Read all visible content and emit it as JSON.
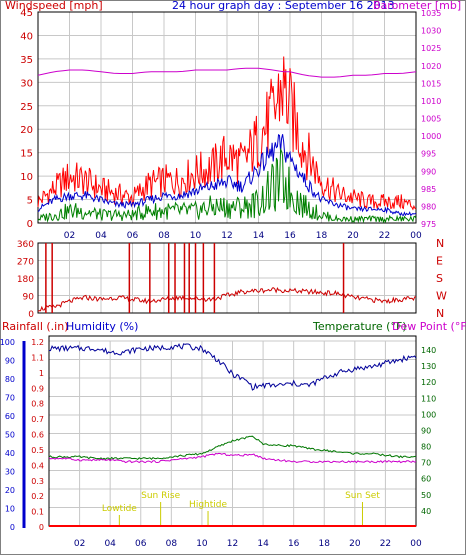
{
  "top_panel": {
    "left_title": "Windspeed [mph]",
    "center_title": "24 hour graph day : September 16 2013",
    "right_title": "Barometer [mb]"
  },
  "bottom_panel": {
    "rainfall_label": "Rainfall (.in)",
    "humidity_label": "Humidity (%)",
    "temperature_label": "Temperature (°F)",
    "dewpoint_label": "Dew Point (°F)",
    "events": [
      {
        "label": "Lowtide",
        "hour": 4.6
      },
      {
        "label": "Sun Rise",
        "hour": 7.3
      },
      {
        "label": "Hightide",
        "hour": 10.4
      },
      {
        "label": "Sun Set",
        "hour": 20.5
      }
    ]
  },
  "x_ticks": [
    "02",
    "04",
    "06",
    "08",
    "10",
    "12",
    "14",
    "16",
    "18",
    "20",
    "22",
    "00"
  ],
  "colors": {
    "wind_gust": "#ff0000",
    "wind_avg": "#0000cc",
    "wind_low": "#008000",
    "barometer": "#cc00cc",
    "direction": "#cc0000",
    "humidity": "#000099",
    "temperature": "#007700",
    "dewpoint": "#cc00cc",
    "rain": "#ff0000",
    "events": "#cccc00",
    "left_axis": "#cc0000",
    "right_axis": "#cc00cc",
    "humidity_axis": "#0000cc",
    "temp_axis": "#006600"
  },
  "chart_data": [
    {
      "type": "line",
      "name": "wind_and_barometer",
      "title": "24 hour graph day : September 16 2013",
      "xlabel": "",
      "ylabel": "Windspeed [mph]",
      "y2label": "Barometer [mb]",
      "xlim": [
        0,
        24
      ],
      "ylim": [
        0,
        45
      ],
      "y2lim": [
        975,
        1035
      ],
      "yticks": [
        0,
        5,
        10,
        15,
        20,
        25,
        30,
        35,
        40,
        45
      ],
      "y2ticks": [
        975,
        980,
        985,
        990,
        995,
        1000,
        1005,
        1010,
        1015,
        1020,
        1025,
        1030,
        1035
      ],
      "grid": true,
      "x": [
        0,
        1,
        2,
        3,
        4,
        5,
        6,
        7,
        8,
        9,
        10,
        11,
        12,
        13,
        14,
        15,
        15.5,
        16,
        17,
        18,
        19,
        20,
        21,
        22,
        23,
        24
      ],
      "series": [
        {
          "name": "gust",
          "axis": "left",
          "values": [
            5,
            8,
            11,
            10,
            8,
            7,
            6,
            9,
            10,
            10,
            12,
            13,
            16,
            14,
            20,
            26,
            33,
            27,
            17,
            10,
            7,
            6,
            5,
            5,
            5,
            4
          ]
        },
        {
          "name": "average",
          "axis": "left",
          "values": [
            3,
            5,
            6,
            6,
            5,
            4,
            4,
            5,
            6,
            6,
            7,
            8,
            9,
            8,
            12,
            16,
            17,
            14,
            9,
            5,
            4,
            3,
            3,
            3,
            2,
            2
          ]
        },
        {
          "name": "low",
          "axis": "left",
          "values": [
            1,
            2,
            3,
            3,
            2,
            2,
            2,
            3,
            3,
            3,
            3,
            4,
            4,
            4,
            5,
            9,
            11,
            8,
            4,
            2,
            1,
            1,
            1,
            1,
            1,
            1
          ]
        },
        {
          "name": "barometer",
          "axis": "right",
          "values": [
            1017,
            1018,
            1018.5,
            1018.5,
            1018,
            1017.5,
            1017.5,
            1018,
            1018,
            1018,
            1018.5,
            1018.5,
            1018.5,
            1019,
            1019,
            1018.5,
            1018,
            1018,
            1017,
            1016.5,
            1016.5,
            1017,
            1017,
            1017.5,
            1017.5,
            1018
          ]
        }
      ]
    },
    {
      "type": "scatter",
      "name": "wind_direction",
      "yticks": [
        0,
        90,
        180,
        270,
        360
      ],
      "ytick_labels_right": [
        "N",
        "W",
        "S",
        "E",
        "N"
      ],
      "ylim": [
        0,
        360
      ],
      "x": [
        0,
        1,
        2,
        3,
        4,
        5,
        6,
        7,
        8,
        9,
        10,
        11,
        12,
        13,
        14,
        15,
        16,
        17,
        18,
        19,
        20,
        21,
        22,
        23,
        24
      ],
      "series": [
        {
          "name": "direction",
          "values": [
            20,
            30,
            60,
            80,
            70,
            80,
            70,
            60,
            70,
            80,
            75,
            70,
            90,
            110,
            115,
            120,
            115,
            110,
            105,
            100,
            80,
            70,
            60,
            70,
            75
          ]
        }
      ]
    },
    {
      "type": "line",
      "name": "rain_humidity_temperature",
      "xlim": [
        0,
        24
      ],
      "ylim": [
        0,
        100
      ],
      "yticks": [
        0,
        10,
        20,
        30,
        40,
        50,
        60,
        70,
        80,
        90,
        100
      ],
      "rain_ticks": [
        "0",
        "0.1",
        "0.2",
        "0.3",
        "0.4",
        "0.5",
        "0.6",
        "0.7",
        "0.8",
        "0.9",
        "1",
        "1.1",
        "1.2"
      ],
      "y2lim": [
        30,
        145
      ],
      "y2ticks": [
        40,
        50,
        60,
        70,
        80,
        90,
        100,
        110,
        120,
        130,
        140
      ],
      "x": [
        0,
        1,
        2,
        3,
        4,
        5,
        6,
        7,
        8,
        9,
        10,
        11,
        12,
        13,
        13.3,
        14,
        15,
        16,
        17,
        18,
        19,
        20,
        21,
        22,
        23,
        24
      ],
      "series": [
        {
          "name": "humidity",
          "axis": "left",
          "values": [
            96,
            96,
            96,
            96,
            94,
            94,
            96,
            96,
            97,
            97,
            96,
            90,
            82,
            78,
            75,
            76,
            76,
            77,
            76,
            80,
            83,
            85,
            86,
            88,
            90,
            92
          ]
        },
        {
          "name": "temperature",
          "axis": "right",
          "values": [
            73,
            73,
            73,
            72,
            72,
            72,
            72,
            72,
            73,
            74,
            75,
            79,
            83,
            85,
            86,
            81,
            80,
            80,
            78,
            77,
            76,
            75,
            75,
            74,
            73,
            73
          ]
        },
        {
          "name": "dewpoint",
          "axis": "right",
          "values": [
            72,
            72,
            71,
            71,
            71,
            70,
            70,
            70,
            71,
            72,
            73,
            75,
            74,
            74,
            75,
            72,
            71,
            70,
            70,
            70,
            70,
            70,
            70,
            70,
            70,
            70
          ]
        },
        {
          "name": "rain",
          "axis": "left",
          "values": [
            0,
            0,
            0,
            0,
            0,
            0,
            0,
            0,
            0,
            0,
            0,
            0,
            0,
            0,
            0,
            0,
            0,
            0,
            0,
            0,
            0,
            0,
            0,
            0,
            0,
            0
          ]
        }
      ]
    }
  ]
}
